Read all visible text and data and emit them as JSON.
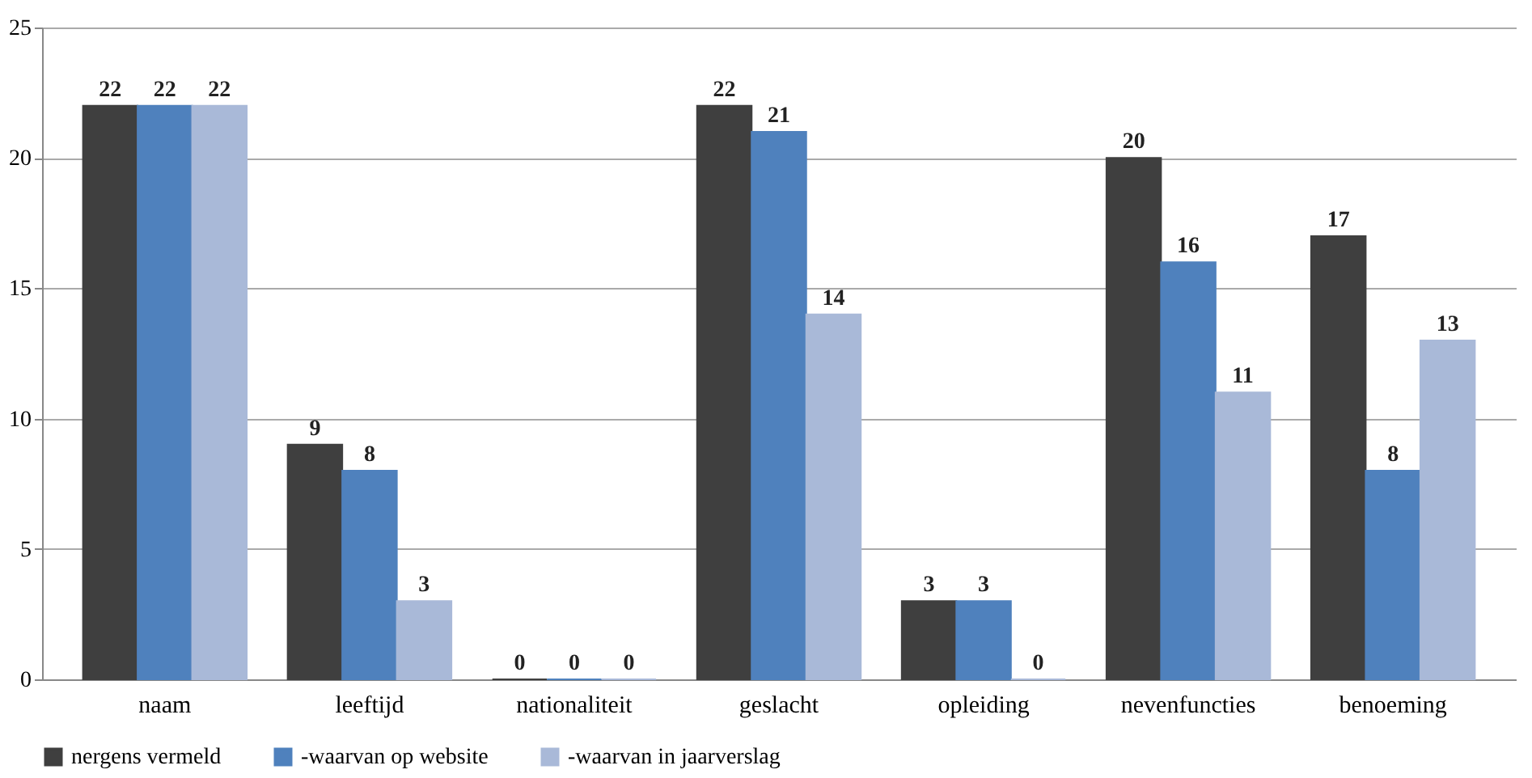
{
  "chart_data": {
    "type": "bar",
    "categories": [
      "naam",
      "leeftijd",
      "nationaliteit",
      "geslacht",
      "opleiding",
      "nevenfuncties",
      "benoeming"
    ],
    "series": [
      {
        "name": "nergens vermeld",
        "color": "#3f3f3f",
        "values": [
          22,
          9,
          0,
          22,
          3,
          20,
          17
        ]
      },
      {
        "name": "-waarvan op website",
        "color": "#4f81bd",
        "values": [
          22,
          8,
          0,
          21,
          3,
          16,
          8
        ]
      },
      {
        "name": "-waarvan in jaarverslag",
        "color": "#a9b9d8",
        "values": [
          22,
          3,
          0,
          14,
          0,
          11,
          13
        ]
      }
    ],
    "ylim": [
      0,
      25
    ],
    "yticks": [
      0,
      5,
      10,
      15,
      20,
      25
    ],
    "grid": "y",
    "legend": "bottom",
    "data_labels": true
  }
}
